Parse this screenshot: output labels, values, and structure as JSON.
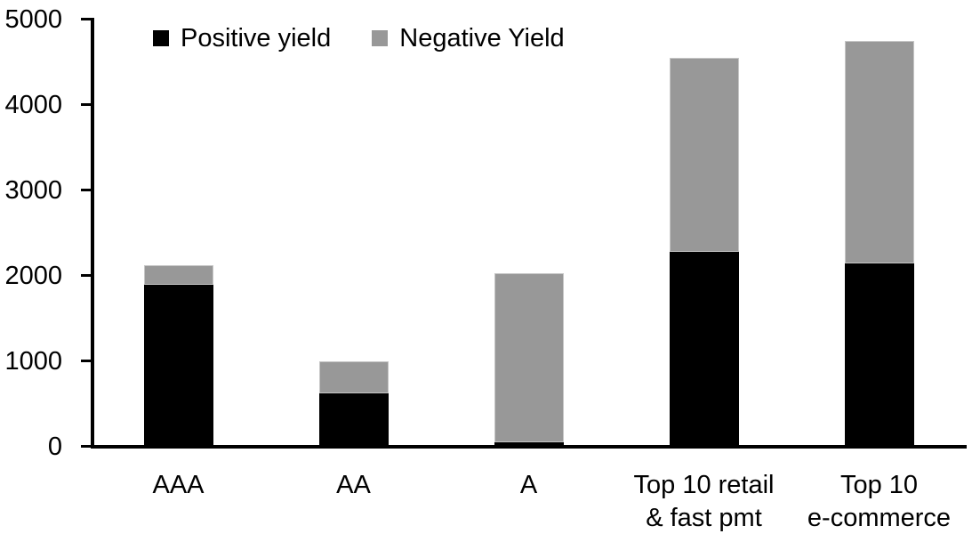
{
  "chart_data": {
    "type": "bar",
    "stacked": true,
    "title": "",
    "xlabel": "",
    "ylabel": "",
    "categories": [
      "AAA",
      "AA",
      "A",
      "Top 10 retail\n& fast pmt",
      "Top 10\ne-commerce"
    ],
    "series": [
      {
        "name": "Positive yield",
        "color": "#000000",
        "values": [
          1900,
          620,
          50,
          2280,
          2150
        ]
      },
      {
        "name": "Negative Yield",
        "color": "#989898",
        "values": [
          220,
          380,
          1980,
          2270,
          2600
        ]
      }
    ],
    "totals": [
      2120,
      1000,
      2030,
      4550,
      4750
    ],
    "ylim": [
      0,
      5000
    ],
    "yticks": [
      0,
      1000,
      2000,
      3000,
      4000,
      5000
    ],
    "grid": false,
    "legend_position": "top"
  },
  "colors": {
    "axis": "#000000",
    "background": "#ffffff",
    "negative_segment_border": "#c6c6c6"
  }
}
